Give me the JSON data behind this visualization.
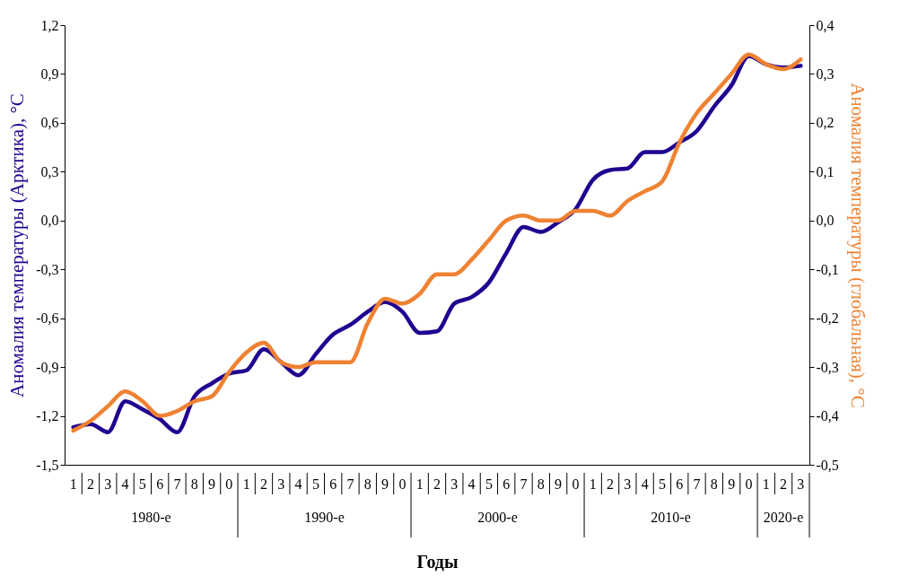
{
  "chart_data": {
    "type": "line",
    "xlabel": "Годы",
    "ylabel": "Аномалия температуры (Арктика), °С",
    "y2label": "Аномалия температуры (глобальная), °С",
    "categories": [
      "1",
      "2",
      "3",
      "4",
      "5",
      "6",
      "7",
      "8",
      "9",
      "0",
      "1",
      "2",
      "3",
      "4",
      "5",
      "6",
      "7",
      "8",
      "9",
      "0",
      "1",
      "2",
      "3",
      "4",
      "5",
      "6",
      "7",
      "8",
      "9",
      "0",
      "1",
      "2",
      "3",
      "4",
      "5",
      "6",
      "7",
      "8",
      "9",
      "0",
      "1",
      "2",
      "3"
    ],
    "series": [
      {
        "color": "#20008f",
        "values": [
          -1.27,
          -1.25,
          -1.3,
          -1.11,
          -1.16,
          -1.22,
          -1.3,
          -1.08,
          -1.0,
          -0.94,
          -0.92,
          -0.79,
          -0.87,
          -0.95,
          -0.82,
          -0.7,
          -0.64,
          -0.56,
          -0.5,
          -0.56,
          -0.69,
          -0.68,
          -0.51,
          -0.47,
          -0.38,
          -0.2,
          -0.04,
          -0.07,
          -0.01,
          0.07,
          0.25,
          0.31,
          0.32,
          0.42,
          0.42,
          0.48,
          0.55,
          0.7,
          0.83,
          1.01,
          0.96,
          0.94,
          0.95
        ]
      },
      {
        "color": "#ef8232",
        "axis": "y2",
        "values": [
          -0.43,
          -0.41,
          -0.38,
          -0.35,
          -0.37,
          -0.4,
          -0.39,
          -0.37,
          -0.36,
          -0.31,
          -0.27,
          -0.25,
          -0.29,
          -0.3,
          -0.29,
          -0.29,
          -0.29,
          -0.21,
          -0.16,
          -0.17,
          -0.15,
          -0.11,
          -0.11,
          -0.08,
          -0.04,
          0.0,
          0.01,
          0.0,
          0.0,
          0.02,
          0.02,
          0.01,
          0.04,
          0.06,
          0.08,
          0.16,
          0.22,
          0.26,
          0.3,
          0.34,
          0.32,
          0.31,
          0.33
        ]
      }
    ],
    "ylim": [
      -1.5,
      1.2
    ],
    "yticks": [
      {
        "value": -1.5,
        "label": "-1,5"
      },
      {
        "value": -1.2,
        "label": "-1,2"
      },
      {
        "value": -0.9,
        "label": "-0,9"
      },
      {
        "value": -0.6,
        "label": "-0,6"
      },
      {
        "value": -0.3,
        "label": "-0,3"
      },
      {
        "value": 0,
        "label": "0,0"
      },
      {
        "value": 0.3,
        "label": "0,3"
      },
      {
        "value": 0.6,
        "label": "0,6"
      },
      {
        "value": 0.9,
        "label": "0,9"
      },
      {
        "value": 1.2,
        "label": "1,2"
      }
    ],
    "y2lim": [
      -0.5,
      0.4
    ],
    "y2ticks": [
      {
        "value": -0.5,
        "label": "-0,5"
      },
      {
        "value": -0.4,
        "label": "-0,4"
      },
      {
        "value": -0.3,
        "label": "-0,3"
      },
      {
        "value": -0.2,
        "label": "-0,2"
      },
      {
        "value": -0.1,
        "label": "-0,1"
      },
      {
        "value": 0,
        "label": "0,0"
      },
      {
        "value": 0.1,
        "label": "0,1"
      },
      {
        "value": 0.2,
        "label": "0,2"
      },
      {
        "value": 0.3,
        "label": "0,3"
      },
      {
        "value": 0.4,
        "label": "0,4"
      }
    ],
    "annotations": [
      "1980-е",
      "1990-е",
      "2000-е",
      "2010-е",
      "2020-е"
    ],
    "grid": false,
    "marker": "none",
    "line_style": "solid"
  }
}
